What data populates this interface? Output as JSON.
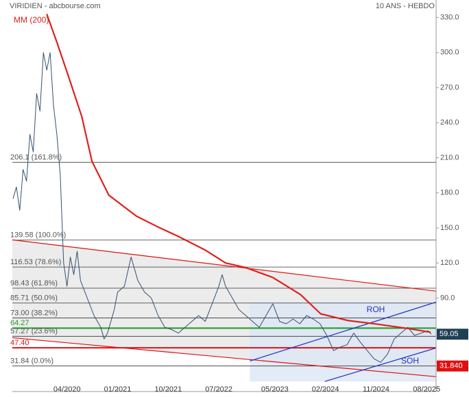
{
  "chart_data": {
    "type": "line",
    "title": "VIRIDIEN - abcbourse.com",
    "subtitle": "10 ANS - HEBDO",
    "xlim": [
      2019.44,
      2025.72
    ],
    "ylim": [
      10,
      345
    ],
    "xticks": [
      {
        "value": 2020.25,
        "label": "04/2020"
      },
      {
        "value": 2021.0,
        "label": "01/2021"
      },
      {
        "value": 2021.75,
        "label": "10/2021"
      },
      {
        "value": 2022.5,
        "label": "07/2022"
      },
      {
        "value": 2023.33,
        "label": "05/2023"
      },
      {
        "value": 2024.08,
        "label": "02/2024"
      },
      {
        "value": 2024.83,
        "label": "11/2024"
      },
      {
        "value": 2025.58,
        "label": "08/2025"
      }
    ],
    "yticks": [
      {
        "value": 330,
        "label": "330.0"
      },
      {
        "value": 300,
        "label": "300.0"
      },
      {
        "value": 270,
        "label": "270.0"
      },
      {
        "value": 240,
        "label": "240.0"
      },
      {
        "value": 210,
        "label": "210.0"
      },
      {
        "value": 180,
        "label": "180.0"
      },
      {
        "value": 150,
        "label": "150.0"
      },
      {
        "value": 120,
        "label": "120.0"
      },
      {
        "value": 90,
        "label": "90.0"
      }
    ],
    "series": [
      {
        "name": "VIRIDIEN",
        "color": "#34506e",
        "x": [
          2019.45,
          2019.5,
          2019.55,
          2019.6,
          2019.65,
          2019.7,
          2019.75,
          2019.8,
          2019.85,
          2019.9,
          2019.95,
          2020.0,
          2020.05,
          2020.1,
          2020.15,
          2020.2,
          2020.25,
          2020.3,
          2020.35,
          2020.4,
          2020.45,
          2020.55,
          2020.65,
          2020.75,
          2020.8,
          2020.85,
          2020.95,
          2021.0,
          2021.1,
          2021.2,
          2021.3,
          2021.4,
          2021.5,
          2021.6,
          2021.7,
          2021.8,
          2021.9,
          2022.0,
          2022.1,
          2022.2,
          2022.3,
          2022.4,
          2022.5,
          2022.55,
          2022.6,
          2022.7,
          2022.8,
          2022.9,
          2023.0,
          2023.1,
          2023.2,
          2023.3,
          2023.4,
          2023.5,
          2023.6,
          2023.7,
          2023.8,
          2023.9,
          2024.0,
          2024.1,
          2024.2,
          2024.3,
          2024.4,
          2024.5,
          2024.6,
          2024.7,
          2024.8,
          2024.9,
          2025.0,
          2025.1,
          2025.2,
          2025.3,
          2025.4,
          2025.5,
          2025.6,
          2025.65
        ],
        "values": [
          175,
          185,
          165,
          200,
          190,
          230,
          215,
          265,
          250,
          300,
          285,
          300,
          255,
          230,
          195,
          120,
          100,
          125,
          110,
          130,
          105,
          90,
          75,
          65,
          55,
          60,
          80,
          95,
          100,
          125,
          105,
          95,
          90,
          75,
          65,
          63,
          60,
          65,
          70,
          75,
          70,
          85,
          100,
          110,
          100,
          90,
          80,
          75,
          70,
          65,
          75,
          85,
          70,
          68,
          72,
          68,
          75,
          72,
          68,
          58,
          45,
          48,
          50,
          60,
          52,
          45,
          38,
          35,
          42,
          55,
          60,
          65,
          58,
          60,
          62,
          59.05
        ]
      },
      {
        "name": "MM (200)",
        "color": "#e0201b",
        "x": [
          2019.95,
          2020.1,
          2020.27,
          2020.47,
          2020.62,
          2020.87,
          2021.28,
          2021.59,
          2021.89,
          2022.3,
          2022.6,
          2022.9,
          2023.3,
          2023.71,
          2024.01,
          2024.42,
          2024.83,
          2025.33,
          2025.64
        ],
        "values": [
          333,
          309,
          280,
          245,
          207,
          178,
          160,
          151,
          143,
          131,
          120,
          116,
          107.6,
          93,
          76.5,
          70.7,
          67.8,
          63.7,
          60.7
        ]
      }
    ],
    "levels": [
      {
        "label": "206.1 (161.8%)",
        "value": 206.1,
        "color": "#555555"
      },
      {
        "label": "139.58 (100.0%)",
        "value": 139.58,
        "color": "#555555"
      },
      {
        "label": "116.53 (78.6%)",
        "value": 116.53,
        "color": "#555555"
      },
      {
        "label": "98.43 (61.8%)",
        "value": 98.43,
        "color": "#555555"
      },
      {
        "label": "85.71 (50.0%)",
        "value": 85.71,
        "color": "#555555"
      },
      {
        "label": "73.00 (38.2%)",
        "value": 73.0,
        "color": "#555555"
      },
      {
        "label": "64.27",
        "value": 64.27,
        "color": "#1e9a1e"
      },
      {
        "label": "57.27 (23.6%)",
        "value": 57.27,
        "color": "#555555"
      },
      {
        "label": "47.40",
        "value": 47.4,
        "color": "#e01010"
      },
      {
        "label": "31.84 (0.0%)",
        "value": 31.84,
        "color": "#555555"
      }
    ],
    "trendlines": [
      {
        "x": [
          2019.44,
          2025.72
        ],
        "y": [
          139.8,
          95.9
        ],
        "color": "#e01010"
      },
      {
        "x": [
          2019.44,
          2025.72
        ],
        "y": [
          56,
          22.7
        ],
        "color": "#e01010"
      },
      {
        "name": "ROH",
        "x": [
          2022.96,
          2025.72
        ],
        "y": [
          36.1,
          86.5
        ],
        "color": "#2030c0"
      },
      {
        "name": "SOH",
        "x": [
          2024.07,
          2025.72
        ],
        "y": [
          18.6,
          47.3
        ],
        "color": "#2030c0"
      }
    ],
    "tags": [
      {
        "value": 59.05,
        "label": "59.05",
        "color": "#1f3f55"
      },
      {
        "value": 31.84,
        "label": "31.840",
        "color": "#e01010"
      }
    ]
  }
}
